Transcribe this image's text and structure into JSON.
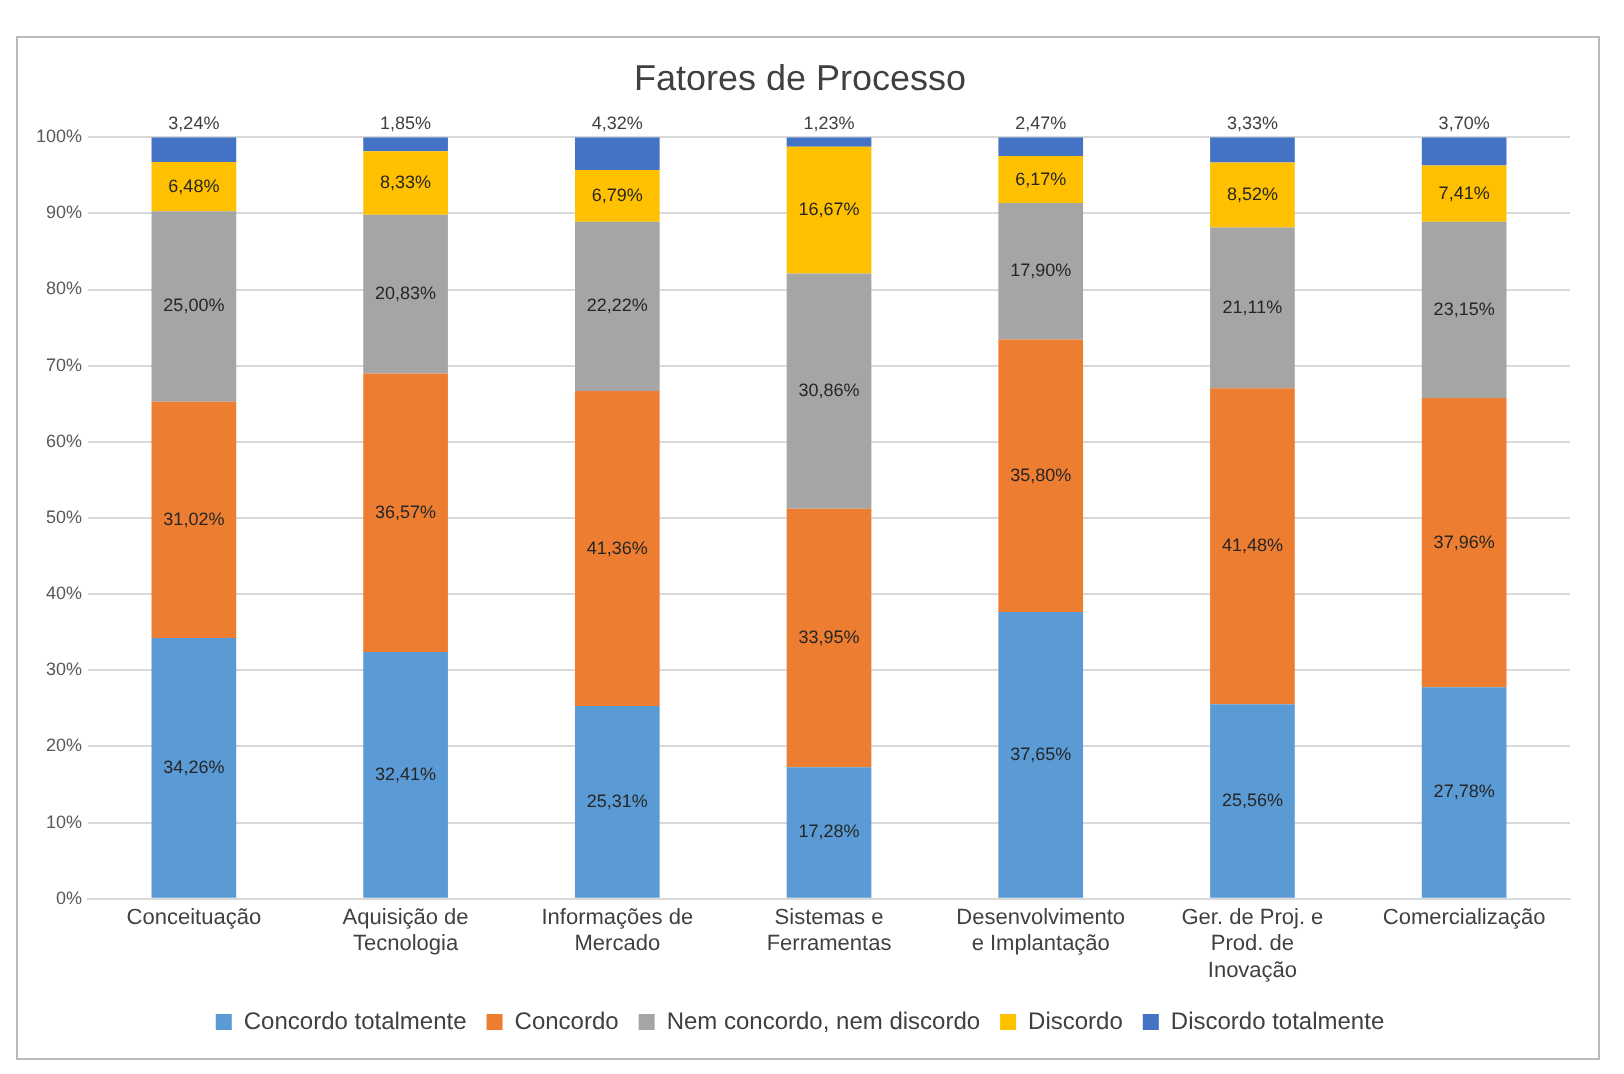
{
  "chart_data": {
    "type": "bar",
    "stacked": true,
    "title": "Fatores de Processo",
    "categories": [
      "Conceituação",
      "Aquisição de\nTecnologia",
      "Informações de\nMercado",
      "Sistemas e\nFerramentas",
      "Desenvolvimento\ne Implantação",
      "Ger. de Proj. e\nProd. de\nInovação",
      "Comercialização"
    ],
    "series": [
      {
        "name": "Concordo totalmente",
        "color": "#5b9bd5",
        "values": [
          34.26,
          32.41,
          25.31,
          17.28,
          37.65,
          25.56,
          27.78
        ],
        "value_labels": [
          "34,26%",
          "32,41%",
          "25,31%",
          "17,28%",
          "37,65%",
          "25,56%",
          "27,78%"
        ]
      },
      {
        "name": "Concordo",
        "color": "#ed7d31",
        "values": [
          31.02,
          36.57,
          41.36,
          33.95,
          35.8,
          41.48,
          37.96
        ],
        "value_labels": [
          "31,02%",
          "36,57%",
          "41,36%",
          "33,95%",
          "35,80%",
          "41,48%",
          "37,96%"
        ]
      },
      {
        "name": "Nem concordo, nem discordo",
        "color": "#a5a5a5",
        "values": [
          25.0,
          20.83,
          22.22,
          30.86,
          17.9,
          21.11,
          23.15
        ],
        "value_labels": [
          "25,00%",
          "20,83%",
          "22,22%",
          "30,86%",
          "17,90%",
          "21,11%",
          "23,15%"
        ]
      },
      {
        "name": "Discordo",
        "color": "#ffc000",
        "values": [
          6.48,
          8.33,
          6.79,
          16.67,
          6.17,
          8.52,
          7.41
        ],
        "value_labels": [
          "6,48%",
          "8,33%",
          "6,79%",
          "16,67%",
          "6,17%",
          "8,52%",
          "7,41%"
        ]
      },
      {
        "name": "Discordo totalmente",
        "color": "#4472c4",
        "values": [
          3.24,
          1.85,
          4.32,
          1.23,
          2.47,
          3.33,
          3.7
        ],
        "value_labels": [
          "3,24%",
          "1,85%",
          "4,32%",
          "1,23%",
          "2,47%",
          "3,33%",
          "3,70%"
        ]
      }
    ],
    "ylim": [
      0,
      100
    ],
    "yticks": [
      {
        "value": 0,
        "label": "0%"
      },
      {
        "value": 10,
        "label": "10%"
      },
      {
        "value": 20,
        "label": "20%"
      },
      {
        "value": 30,
        "label": "30%"
      },
      {
        "value": 40,
        "label": "40%"
      },
      {
        "value": 50,
        "label": "50%"
      },
      {
        "value": 60,
        "label": "60%"
      },
      {
        "value": 70,
        "label": "70%"
      },
      {
        "value": 80,
        "label": "80%"
      },
      {
        "value": 90,
        "label": "90%"
      },
      {
        "value": 100,
        "label": "100%"
      }
    ],
    "grid": "y",
    "legend": "bottom"
  }
}
